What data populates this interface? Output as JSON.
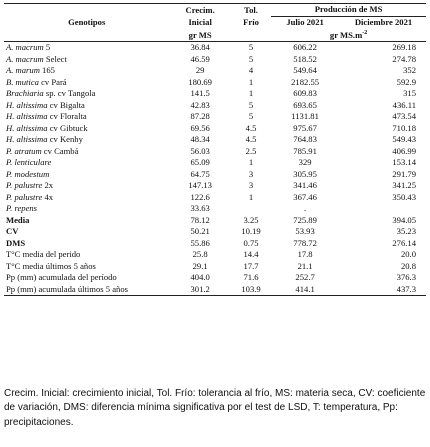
{
  "headers": {
    "genotipos": "Genotipos",
    "crecim_line1": "Crecim.",
    "crecim_line2": "Inicial",
    "tol_line1": "Tol.",
    "tol_line2": "Frío",
    "produccion": "Producción de MS",
    "julio": "Julio 2021",
    "diciembre": "Diciembre 2021",
    "unit_crecim": "gr MS",
    "unit_prod": "gr MS.m",
    "unit_prod_exp": "-2"
  },
  "rows": [
    {
      "sci": "A. macrum",
      "rest": " 5",
      "crecim": "36.84",
      "tol": "5",
      "julio": "606.22",
      "dic": "269.18"
    },
    {
      "sci": "A. macrum",
      "rest": " Select",
      "crecim": "46.59",
      "tol": "5",
      "julio": "518.52",
      "dic": "274.78"
    },
    {
      "sci": "A. marum",
      "rest": " 165",
      "crecim": "29",
      "tol": "4",
      "julio": "549.64",
      "dic": "352"
    },
    {
      "sci": "B. mutica",
      "rest": " cv Pará",
      "crecim": "180.69",
      "tol": "1",
      "julio": "2182.55",
      "dic": "592.9"
    },
    {
      "sci": "Brachiaria",
      "rest": " sp. cv Tangola",
      "crecim": "141.5",
      "tol": "1",
      "julio": "609.83",
      "dic": "315"
    },
    {
      "sci": "H. altissima",
      "rest": " cv Bigalta",
      "crecim": "42.83",
      "tol": "5",
      "julio": "693.65",
      "dic": "436.11"
    },
    {
      "sci": "H. altissima",
      "rest": " cv Floralta",
      "crecim": "87.28",
      "tol": "5",
      "julio": "1131.81",
      "dic": "473.54"
    },
    {
      "sci": "H. altissima",
      "rest": " cv Gibtuck",
      "crecim": "69.56",
      "tol": "4.5",
      "julio": "975.67",
      "dic": "710.18"
    },
    {
      "sci": "H. altissima",
      "rest": " cv Kenhy",
      "crecim": "48.34",
      "tol": "4.5",
      "julio": "764.83",
      "dic": "549.43"
    },
    {
      "sci": "P. atratum",
      "rest": " cv Cambá",
      "crecim": "56.03",
      "tol": "2.5",
      "julio": "785.91",
      "dic": "406.99"
    },
    {
      "sci": "P. lenticulare",
      "rest": "",
      "crecim": "65.09",
      "tol": "1",
      "julio": "329",
      "dic": "153.14"
    },
    {
      "sci": "P. modestum",
      "rest": "",
      "crecim": "64.75",
      "tol": "3",
      "julio": "305.95",
      "dic": "291.79"
    },
    {
      "sci": "P. palustre",
      "rest": " 2x",
      "crecim": "147.13",
      "tol": "3",
      "julio": "341.46",
      "dic": "341.25"
    },
    {
      "sci": "P. palustre",
      "rest": " 4x",
      "crecim": "122.6",
      "tol": "1",
      "julio": "367.46",
      "dic": "350.43"
    },
    {
      "sci": "P. repens",
      "rest": "",
      "crecim": "33.63",
      "tol": "",
      "julio": ".",
      "dic": ""
    }
  ],
  "stats": [
    {
      "label": "Media",
      "bold": true,
      "crecim": "78.12",
      "tol": "3.25",
      "julio": "725.89",
      "dic": "394.05"
    },
    {
      "label": "CV",
      "bold": true,
      "crecim": "50.21",
      "tol": "10.19",
      "julio": "53.93",
      "dic": "35.23"
    },
    {
      "label": "DMS",
      "bold": true,
      "crecim": "55.86",
      "tol": "0.75",
      "julio": "778.72",
      "dic": "276.14"
    },
    {
      "label": "T°C media del perido",
      "bold": false,
      "crecim": "25.8",
      "tol": "14.4",
      "julio": "17.8",
      "dic": "20.0"
    },
    {
      "label": "T°C media últimos 5 años",
      "bold": false,
      "crecim": "29.1",
      "tol": "17.7",
      "julio": "21.1",
      "dic": "20.8"
    },
    {
      "label": "Pp (mm) acumulada del período",
      "bold": false,
      "crecim": "404.0",
      "tol": "71.6",
      "julio": "252.7",
      "dic": "376.3"
    },
    {
      "label": "Pp (mm) acumulada últimos 5 años",
      "bold": false,
      "crecim": "301.2",
      "tol": "103.9",
      "julio": "414.1",
      "dic": "437.3"
    }
  ],
  "caption": "Crecim. Inicial: crecimiento inicial, Tol. Frío: tolerancia al frío, MS: materia seca, CV: coeficiente de variación, DMS: diferencia mínima significativa por el test de LSD, T: temperatura, Pp: precipitaciones."
}
